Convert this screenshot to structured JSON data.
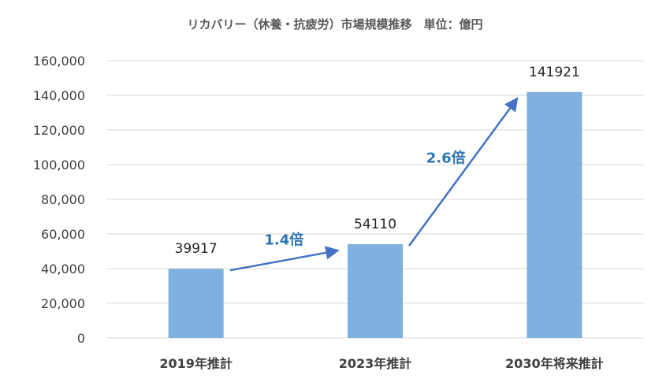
{
  "chart_data": {
    "type": "bar",
    "title": "リカバリー（休養・抗疲労）市場規模推移　単位：億円",
    "categories": [
      "2019年推計",
      "2023年推計",
      "2030年将来推計"
    ],
    "values": [
      39917,
      54110,
      141921
    ],
    "data_labels": [
      "39917",
      "54110",
      "141921"
    ],
    "y_ticks": [
      "0",
      "20,000",
      "40,000",
      "60,000",
      "80,000",
      "100,000",
      "120,000",
      "140,000",
      "160,000"
    ],
    "ylim": [
      0,
      160000
    ],
    "grid": true,
    "colors": {
      "bar": "#7FB0DF",
      "arrow": "#4472C4",
      "annotation": "#2E75B6"
    },
    "annotations": [
      {
        "text": "1.4倍",
        "from_category": 0,
        "to_category": 1
      },
      {
        "text": "2.6倍",
        "from_category": 1,
        "to_category": 2
      }
    ]
  }
}
